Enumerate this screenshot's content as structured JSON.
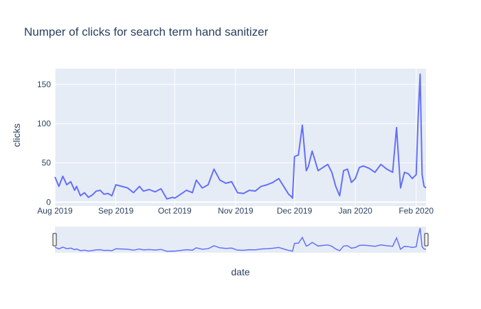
{
  "chart_data": {
    "type": "line",
    "title": "Numper of clicks for search term hand sanitizer",
    "xlabel": "date",
    "ylabel": "clicks",
    "x_range": [
      "2019-08-01",
      "2020-02-06"
    ],
    "y_range": [
      -5,
      170
    ],
    "y_ticks": [
      0,
      50,
      100,
      150
    ],
    "x_ticks": [
      {
        "date": "2019-08-01",
        "label": "Aug 2019"
      },
      {
        "date": "2019-09-01",
        "label": "Sep 2019"
      },
      {
        "date": "2019-10-01",
        "label": "Oct 2019"
      },
      {
        "date": "2019-11-01",
        "label": "Nov 2019"
      },
      {
        "date": "2019-12-01",
        "label": "Dec 2019"
      },
      {
        "date": "2020-01-01",
        "label": "Jan 2020"
      },
      {
        "date": "2020-02-01",
        "label": "Feb 2020"
      }
    ],
    "grid": true,
    "range_slider": true,
    "line_color": "#636efa",
    "plot_bg": "#e5ecf6",
    "series": [
      {
        "x": [
          "2019-08-01",
          "2019-08-03",
          "2019-08-05",
          "2019-08-07",
          "2019-08-09",
          "2019-08-11",
          "2019-08-12",
          "2019-08-14",
          "2019-08-16",
          "2019-08-18",
          "2019-08-20",
          "2019-08-22",
          "2019-08-24",
          "2019-08-26",
          "2019-08-28",
          "2019-08-30",
          "2019-09-01",
          "2019-09-04",
          "2019-09-07",
          "2019-09-10",
          "2019-09-13",
          "2019-09-15",
          "2019-09-18",
          "2019-09-21",
          "2019-09-24",
          "2019-09-27",
          "2019-09-30",
          "2019-10-01",
          "2019-10-04",
          "2019-10-07",
          "2019-10-10",
          "2019-10-12",
          "2019-10-15",
          "2019-10-18",
          "2019-10-21",
          "2019-10-24",
          "2019-10-27",
          "2019-10-30",
          "2019-11-02",
          "2019-11-05",
          "2019-11-08",
          "2019-11-11",
          "2019-11-14",
          "2019-11-17",
          "2019-11-20",
          "2019-11-23",
          "2019-11-26",
          "2019-11-28",
          "2019-11-29",
          "2019-11-30",
          "2019-12-01",
          "2019-12-03",
          "2019-12-05",
          "2019-12-07",
          "2019-12-08",
          "2019-12-10",
          "2019-12-13",
          "2019-12-16",
          "2019-12-18",
          "2019-12-20",
          "2019-12-22",
          "2019-12-24",
          "2019-12-26",
          "2019-12-28",
          "2019-12-30",
          "2020-01-01",
          "2020-01-03",
          "2020-01-05",
          "2020-01-08",
          "2020-01-11",
          "2020-01-14",
          "2020-01-17",
          "2020-01-20",
          "2020-01-22",
          "2020-01-24",
          "2020-01-26",
          "2020-01-28",
          "2020-01-30",
          "2020-02-01",
          "2020-02-02",
          "2020-02-03",
          "2020-02-04",
          "2020-02-05",
          "2020-02-06"
        ],
        "y": [
          32,
          20,
          33,
          22,
          26,
          15,
          20,
          8,
          12,
          6,
          9,
          14,
          15,
          10,
          11,
          8,
          22,
          20,
          18,
          12,
          20,
          14,
          16,
          13,
          17,
          4,
          6,
          5,
          10,
          15,
          12,
          28,
          18,
          22,
          42,
          28,
          24,
          26,
          12,
          11,
          15,
          14,
          20,
          22,
          25,
          30,
          18,
          10,
          8,
          5,
          58,
          60,
          98,
          40,
          45,
          65,
          40,
          45,
          48,
          38,
          20,
          8,
          40,
          42,
          25,
          30,
          44,
          46,
          43,
          38,
          48,
          42,
          38,
          95,
          18,
          38,
          36,
          30,
          35,
          110,
          163,
          35,
          20,
          18
        ]
      }
    ]
  }
}
